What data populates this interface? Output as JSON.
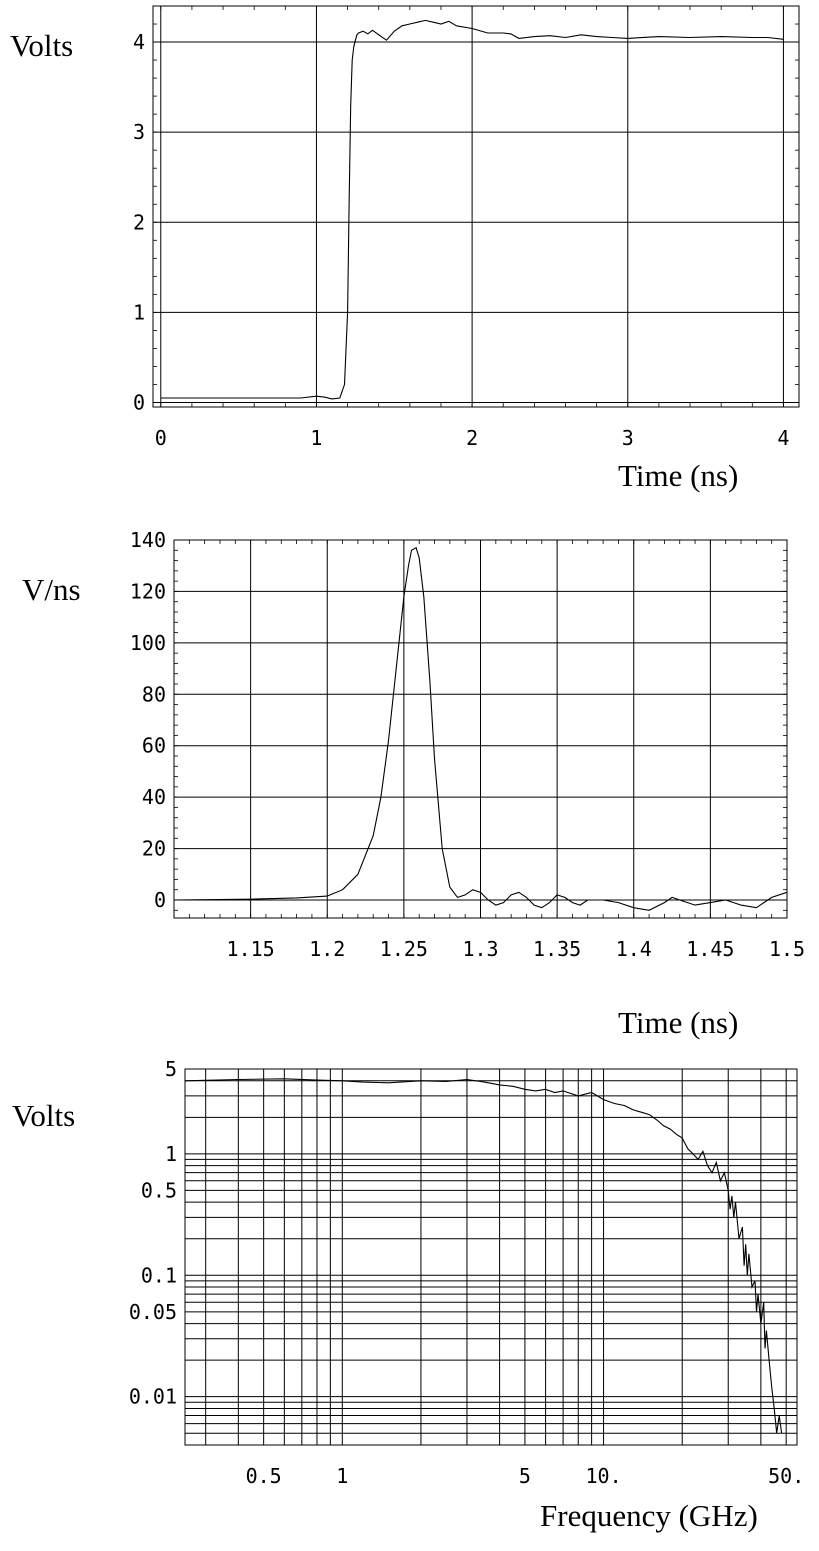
{
  "chart_data": [
    {
      "type": "line",
      "ylabel": "Volts",
      "xlabel": "Time (ns)",
      "xlim": [
        -0.05,
        4.1
      ],
      "ylim": [
        -0.05,
        4.4
      ],
      "grid": true,
      "x_ticks": [
        0,
        1,
        2,
        3,
        4
      ],
      "x_tick_labels": [
        "0",
        "1",
        "2",
        "3",
        "4"
      ],
      "y_ticks": [
        0,
        1,
        2,
        3,
        4
      ],
      "y_tick_labels": [
        "0",
        "1",
        "2",
        "3",
        "4"
      ],
      "series": [
        {
          "x": [
            0,
            0.5,
            0.9,
            1.0,
            1.05,
            1.1,
            1.15,
            1.18,
            1.2,
            1.21,
            1.22,
            1.23,
            1.24,
            1.25,
            1.26,
            1.27,
            1.3,
            1.33,
            1.36,
            1.4,
            1.45,
            1.5,
            1.55,
            1.6,
            1.65,
            1.7,
            1.75,
            1.8,
            1.85,
            1.9,
            2.0,
            2.1,
            2.2,
            2.25,
            2.3,
            2.4,
            2.5,
            2.6,
            2.7,
            2.8,
            2.9,
            3.0,
            3.2,
            3.4,
            3.6,
            3.8,
            3.9,
            4.0
          ],
          "y": [
            0.05,
            0.05,
            0.05,
            0.07,
            0.06,
            0.04,
            0.05,
            0.2,
            1.0,
            2.2,
            3.3,
            3.8,
            3.95,
            4.02,
            4.08,
            4.1,
            4.12,
            4.09,
            4.13,
            4.08,
            4.02,
            4.12,
            4.18,
            4.2,
            4.22,
            4.24,
            4.22,
            4.2,
            4.23,
            4.18,
            4.15,
            4.1,
            4.1,
            4.09,
            4.04,
            4.06,
            4.07,
            4.05,
            4.08,
            4.06,
            4.05,
            4.04,
            4.06,
            4.05,
            4.06,
            4.05,
            4.05,
            4.03
          ]
        }
      ]
    },
    {
      "type": "line",
      "ylabel": "V/ns",
      "xlabel": "Time (ns)",
      "xlim": [
        1.1,
        1.5
      ],
      "ylim": [
        -7,
        140
      ],
      "grid": true,
      "x_ticks": [
        1.15,
        1.2,
        1.25,
        1.3,
        1.35,
        1.4,
        1.45,
        1.5
      ],
      "x_tick_labels": [
        "1.15",
        "1.2",
        "1.25",
        "1.3",
        "1.35",
        "1.4",
        "1.45",
        "1.5"
      ],
      "y_ticks": [
        0,
        20,
        40,
        60,
        80,
        100,
        120,
        140
      ],
      "y_tick_labels": [
        "0",
        "20",
        "40",
        "60",
        "80",
        "100",
        "120",
        "140"
      ],
      "series": [
        {
          "x": [
            1.1,
            1.15,
            1.18,
            1.2,
            1.21,
            1.22,
            1.23,
            1.235,
            1.24,
            1.245,
            1.25,
            1.253,
            1.255,
            1.258,
            1.26,
            1.263,
            1.267,
            1.27,
            1.275,
            1.28,
            1.285,
            1.29,
            1.295,
            1.3,
            1.305,
            1.31,
            1.315,
            1.32,
            1.325,
            1.33,
            1.335,
            1.34,
            1.345,
            1.35,
            1.355,
            1.36,
            1.365,
            1.37,
            1.38,
            1.39,
            1.4,
            1.41,
            1.42,
            1.425,
            1.43,
            1.44,
            1.45,
            1.46,
            1.47,
            1.48,
            1.49,
            1.5
          ],
          "y": [
            0,
            0.3,
            0.8,
            1.5,
            4,
            10,
            25,
            40,
            62,
            90,
            118,
            130,
            136,
            137,
            133,
            118,
            85,
            55,
            20,
            5,
            1,
            2,
            4,
            3,
            0,
            -2,
            -1,
            2,
            3,
            1,
            -2,
            -3,
            -1,
            2,
            1,
            -1,
            -2,
            0,
            0,
            -1,
            -3,
            -4,
            -1,
            1,
            0,
            -2,
            -1,
            0,
            -2,
            -3,
            1,
            3
          ]
        }
      ]
    },
    {
      "type": "line",
      "ylabel": "Volts",
      "xlabel": "Frequency (GHz)",
      "x_scale": "log",
      "y_scale": "log",
      "xlim": [
        0.25,
        55
      ],
      "ylim": [
        0.004,
        5
      ],
      "grid": true,
      "x_ticks": [
        0.5,
        1,
        5,
        10,
        50
      ],
      "x_tick_labels": [
        "0.5",
        "1",
        "5",
        "10.",
        "50."
      ],
      "y_ticks": [
        0.01,
        0.05,
        0.1,
        0.5,
        1,
        5
      ],
      "y_tick_labels": [
        "0.01",
        "0.05",
        "0.1",
        "0.5",
        "1",
        "5"
      ],
      "series": [
        {
          "x": [
            0.25,
            0.4,
            0.6,
            0.8,
            1.0,
            1.2,
            1.5,
            2.0,
            2.5,
            3.0,
            3.5,
            4.0,
            4.5,
            5.0,
            5.5,
            6.0,
            6.5,
            7.0,
            8.0,
            9.0,
            10,
            11,
            12,
            13,
            14,
            15,
            16,
            17,
            18,
            19,
            20,
            21,
            22,
            23,
            24,
            25,
            26,
            27,
            28,
            29,
            30,
            30.5,
            31,
            31.5,
            32,
            33,
            34,
            34.5,
            35,
            35.5,
            36,
            37,
            38,
            38.5,
            39,
            40,
            41,
            41.5,
            42,
            43,
            44,
            45,
            46,
            47,
            48
          ],
          "y": [
            4.0,
            4.1,
            4.15,
            4.05,
            4.0,
            3.9,
            3.85,
            4.0,
            3.95,
            4.1,
            3.9,
            3.7,
            3.6,
            3.4,
            3.3,
            3.4,
            3.2,
            3.3,
            3.0,
            3.2,
            2.8,
            2.6,
            2.5,
            2.3,
            2.2,
            2.1,
            1.9,
            1.7,
            1.6,
            1.45,
            1.35,
            1.1,
            1.0,
            0.9,
            1.05,
            0.8,
            0.7,
            0.85,
            0.6,
            0.7,
            0.5,
            0.35,
            0.45,
            0.3,
            0.4,
            0.2,
            0.25,
            0.12,
            0.18,
            0.1,
            0.15,
            0.08,
            0.09,
            0.05,
            0.07,
            0.04,
            0.06,
            0.025,
            0.035,
            0.02,
            0.012,
            0.008,
            0.005,
            0.007,
            0.005
          ]
        }
      ]
    }
  ]
}
